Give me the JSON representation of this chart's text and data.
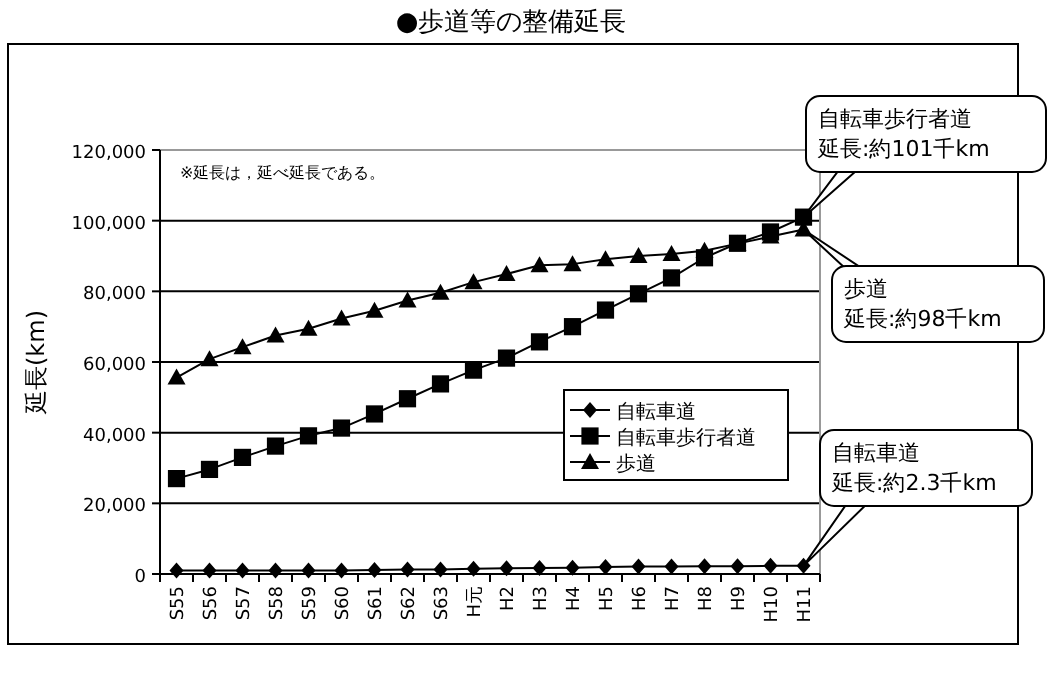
{
  "chart_data": {
    "type": "line",
    "title": "●歩道等の整備延長",
    "ylabel": "延長(km)",
    "categories": [
      "S55",
      "S56",
      "S57",
      "S58",
      "S59",
      "S60",
      "S61",
      "S62",
      "S63",
      "H元",
      "H2",
      "H3",
      "H4",
      "H5",
      "H6",
      "H7",
      "H8",
      "H9",
      "H10",
      "H11"
    ],
    "series": [
      {
        "name": "自転車道",
        "color": "#000000",
        "marker": "diamond",
        "values": [
          1000,
          1000,
          1000,
          1000,
          1000,
          1000,
          1100,
          1300,
          1300,
          1500,
          1600,
          1700,
          1800,
          2000,
          2100,
          2100,
          2200,
          2200,
          2300,
          2300
        ]
      },
      {
        "name": "自転車歩行者道",
        "color": "#000000",
        "marker": "square",
        "values": [
          27000,
          29600,
          33000,
          36200,
          39100,
          41300,
          45300,
          49600,
          53800,
          57700,
          61100,
          65700,
          70000,
          74700,
          79300,
          83800,
          89500,
          93600,
          96800,
          101000
        ]
      },
      {
        "name": "歩道",
        "color": "#000000",
        "marker": "triangle",
        "values": [
          55600,
          60800,
          64200,
          67500,
          69400,
          72300,
          74500,
          77400,
          79600,
          82600,
          84900,
          87400,
          87700,
          89100,
          90000,
          90600,
          91500,
          93500,
          95500,
          97500
        ]
      }
    ],
    "ylim": [
      0,
      120000
    ],
    "yticks": [
      0,
      {
        "value": 20000,
        "label": "20,000"
      },
      {
        "value": 40000,
        "label": "40,000"
      },
      {
        "value": 60000,
        "label": "60,000"
      },
      {
        "value": 80000,
        "label": "80,000"
      },
      {
        "value": 100000,
        "label": "100,000"
      },
      {
        "value": 120000,
        "label": "120,000"
      }
    ],
    "grid": "y",
    "legend": "right",
    "line_style": "solid",
    "annotations": [
      "※延長は，延べ延長である。",
      "自転車歩行者道",
      "延長:約101千km",
      {
        "text": "歩道",
        "x": "H11",
        "y": 97500
      },
      "延長:約98千km",
      "自転車道",
      "延長:約2.3千km"
    ]
  }
}
